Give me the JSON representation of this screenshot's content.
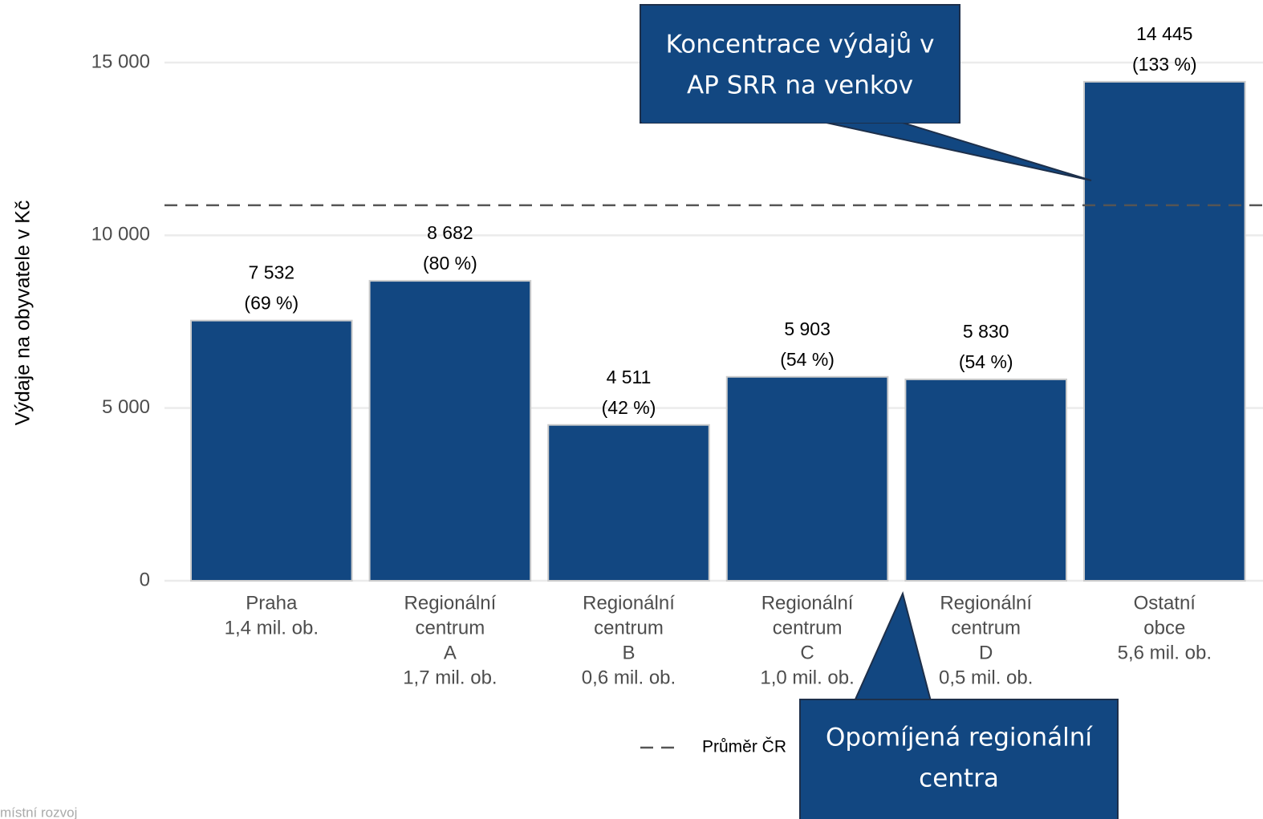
{
  "chart_data": {
    "type": "bar",
    "y_label": "Výdaje na obyvatele v Kč",
    "categories": [
      [
        "Praha",
        "1,4 mil. ob."
      ],
      [
        "Regionální",
        "centrum",
        "A",
        "1,7 mil. ob."
      ],
      [
        "Regionální",
        "centrum",
        "B",
        "0,6 mil. ob."
      ],
      [
        "Regionální",
        "centrum",
        "C",
        "1,0 mil. ob."
      ],
      [
        "Regionální",
        "centrum",
        "D",
        "0,5 mil. ob."
      ],
      [
        "Ostatní",
        "obce",
        "5,6 mil. ob."
      ]
    ],
    "values": [
      7532,
      8682,
      4511,
      5903,
      5830,
      14445
    ],
    "value_labels": [
      "7 532",
      "8 682",
      "4 511",
      "5 903",
      "5 830",
      "14 445"
    ],
    "share_values": [
      69,
      80,
      42,
      54,
      54,
      133
    ],
    "share_labels": [
      "(69 %)",
      "(80 %)",
      "(42 %)",
      "(54 %)",
      "(54 %)",
      "(133 %)"
    ],
    "color": "#124781",
    "ylim": [
      0,
      15000
    ],
    "yticks": [
      0,
      {
        "value": 5000,
        "label": "5 000"
      },
      {
        "value": 10000,
        "label": "10 000"
      },
      {
        "value": 15000,
        "label": "15 000"
      }
    ],
    "grid": true,
    "average": {
      "name": "Průměr ČR",
      "value": 10870
    },
    "annotations": [
      [
        "Koncentrace výdajů v",
        "AP SRR na venkov"
      ],
      [
        "Opomíjená regionální",
        "centra"
      ]
    ],
    "source": "místní rozvoj"
  }
}
